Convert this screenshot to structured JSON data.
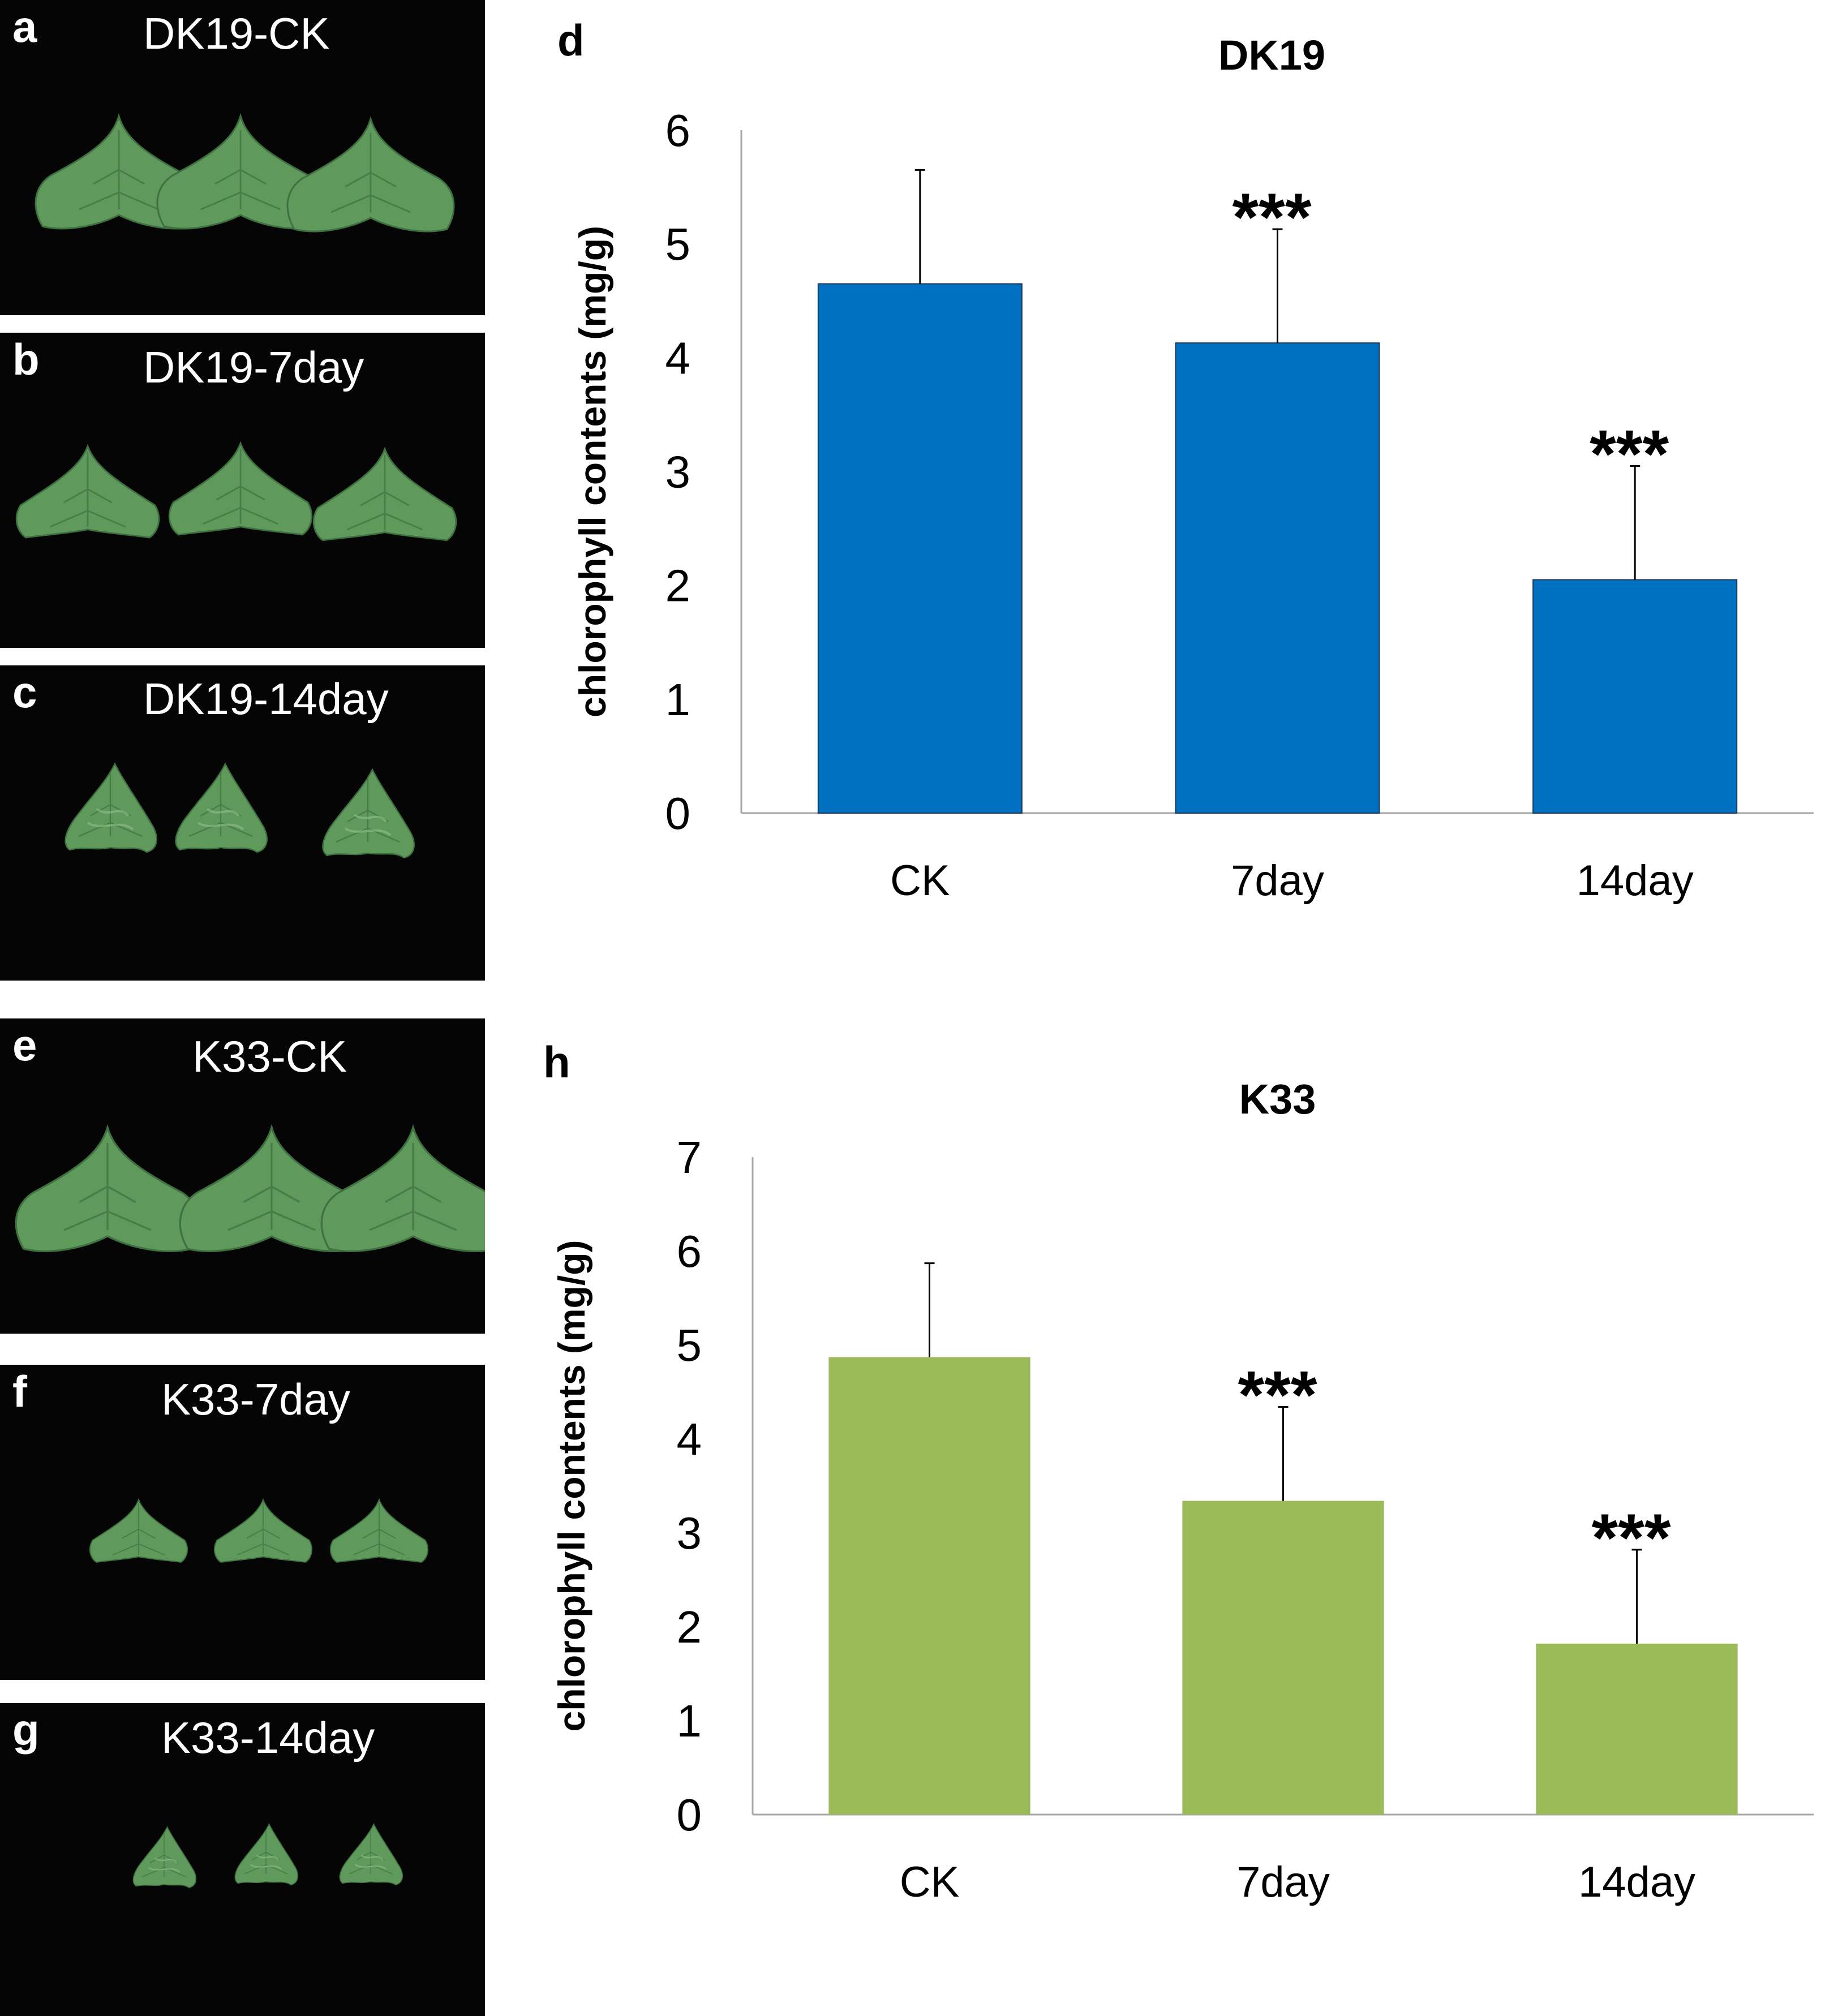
{
  "photo_panels": [
    {
      "letter": "a",
      "caption": "DK19-CK",
      "state": "healthy"
    },
    {
      "letter": "b",
      "caption": "DK19-7day",
      "state": "mild"
    },
    {
      "letter": "c",
      "caption": "DK19-14day",
      "state": "wilted"
    },
    {
      "letter": "e",
      "caption": "K33-CK",
      "state": "healthy"
    },
    {
      "letter": "f",
      "caption": "K33-7day",
      "state": "mild"
    },
    {
      "letter": "g",
      "caption": "K33-14day",
      "state": "wilted"
    }
  ],
  "colors": {
    "dk19_bar": "#0070c0",
    "k33_bar": "#9bbb59",
    "leaf": "#5f9a5c",
    "leaf_dark": "#3f7040"
  },
  "chart_data": [
    {
      "panel_letter": "d",
      "type": "bar",
      "title": "DK19",
      "categories": [
        "CK",
        "7day",
        "14day"
      ],
      "values": [
        4.65,
        4.13,
        2.05
      ],
      "error_plus": [
        1.0,
        1.0,
        1.0
      ],
      "annotations": [
        "",
        "***",
        "***"
      ],
      "ylabel": "chlorophyll contents (mg/g)",
      "xlabel": "",
      "ylim": [
        0,
        6
      ],
      "yticks": [
        0,
        1,
        2,
        3,
        4,
        5,
        6
      ],
      "color": "#0070c0"
    },
    {
      "panel_letter": "h",
      "type": "bar",
      "title": "K33",
      "categories": [
        "CK",
        "7day",
        "14day"
      ],
      "values": [
        4.87,
        3.34,
        1.82
      ],
      "error_plus": [
        1.0,
        1.0,
        1.0
      ],
      "annotations": [
        "",
        "***",
        "***"
      ],
      "ylabel": "chlorophyll contents (mg/g)",
      "xlabel": "",
      "ylim": [
        0,
        7
      ],
      "yticks": [
        0,
        1,
        2,
        3,
        4,
        5,
        6,
        7
      ],
      "color": "#9bbb59"
    }
  ]
}
